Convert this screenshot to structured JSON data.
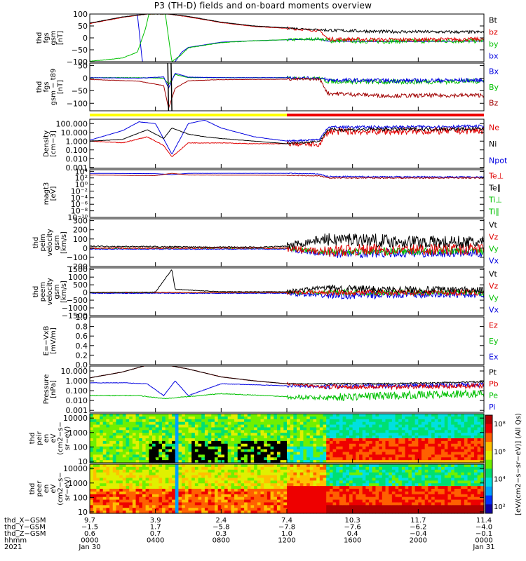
{
  "title": "P3 (TH-D) fields and on-board moments overview",
  "panels": [
    {
      "id": "fgs-gsm",
      "ylabel": [
        "thd",
        "fgs",
        "gsm",
        "[nT]"
      ],
      "ticks": [
        [
          "100",
          100
        ],
        [
          "50",
          50
        ],
        [
          "0",
          0
        ],
        [
          "−50",
          -50
        ],
        [
          "−100",
          -100
        ]
      ],
      "ylim": [
        -100,
        100
      ],
      "log": false,
      "legend": [
        {
          "t": "Bt",
          "c": "#000000"
        },
        {
          "t": "bz",
          "c": "#e00000"
        },
        {
          "t": "by",
          "c": "#00c000"
        },
        {
          "t": "bx",
          "c": "#0000e0"
        }
      ]
    },
    {
      "id": "fgs-gsm-t89",
      "ylabel": [
        "thd",
        "fgs",
        "gsm − t89",
        "[nT]"
      ],
      "ticks": [
        [
          "50",
          50
        ],
        [
          "0",
          0
        ],
        [
          "−50",
          -50
        ],
        [
          "−100",
          -100
        ]
      ],
      "ylim": [
        -130,
        60
      ],
      "log": false,
      "legend": [
        {
          "t": "Bx",
          "c": "#0000e0"
        },
        {
          "t": "By",
          "c": "#00c000"
        },
        {
          "t": "Bz",
          "c": "#a00000"
        }
      ]
    },
    {
      "id": "density",
      "ylabel": [
        "Density",
        "[cm−3]"
      ],
      "ticks": [
        [
          "100.000",
          2
        ],
        [
          "10.000",
          1
        ],
        [
          "1.000",
          0
        ],
        [
          "0.100",
          -1
        ],
        [
          "0.010",
          -2
        ],
        [
          "0.001",
          -3
        ]
      ],
      "ylim": [
        -3.1,
        2.5
      ],
      "log": true,
      "legend": [
        {
          "t": "Ne",
          "c": "#e00000"
        },
        {
          "t": "Ni",
          "c": "#000000"
        },
        {
          "t": "Npot",
          "c": "#0000e0"
        }
      ]
    },
    {
      "id": "temperature",
      "ylabel": [
        "magt3",
        "[eV]"
      ],
      "ticks": [
        [
          "10⁴",
          4
        ],
        [
          "10²",
          2
        ],
        [
          "10⁰",
          0
        ],
        [
          "10⁻²",
          -2
        ],
        [
          "10⁻⁴",
          -4
        ],
        [
          "10⁻⁶",
          -6
        ],
        [
          "10⁻⁸",
          -8
        ],
        [
          "10⁻¹⁰",
          -10
        ]
      ],
      "ylim": [
        -10,
        4.5
      ],
      "log": true,
      "legend": [
        {
          "t": "Te⊥",
          "c": "#e00000"
        },
        {
          "t": "Te∥",
          "c": "#000000"
        },
        {
          "t": "Ti⊥",
          "c": "#00c000"
        },
        {
          "t": "Ti∥",
          "c": "#00c000"
        }
      ]
    },
    {
      "id": "ion-velocity",
      "ylabel": [
        "thd",
        "peim",
        "velocity",
        "gsm",
        "[km/s]"
      ],
      "ticks": [
        [
          "300",
          300
        ],
        [
          "200",
          200
        ],
        [
          "100",
          100
        ],
        [
          "0",
          0
        ],
        [
          "−100",
          -100
        ],
        [
          "−200",
          -200
        ]
      ],
      "ylim": [
        -200,
        320
      ],
      "log": false,
      "legend": [
        {
          "t": "Vt",
          "c": "#000000"
        },
        {
          "t": "Vz",
          "c": "#e00000"
        },
        {
          "t": "Vy",
          "c": "#00c000"
        },
        {
          "t": "Vx",
          "c": "#0000e0"
        }
      ]
    },
    {
      "id": "electron-velocity",
      "ylabel": [
        "thd",
        "peem",
        "velocity",
        "gsm",
        "[km/s]"
      ],
      "ticks": [
        [
          "1500",
          1500
        ],
        [
          "1000",
          1000
        ],
        [
          "500",
          500
        ],
        [
          "0",
          0
        ],
        [
          "−500",
          -500
        ],
        [
          "−1000",
          -1000
        ],
        [
          "−1500",
          -1500
        ]
      ],
      "ylim": [
        -1500,
        1600
      ],
      "log": false,
      "legend": [
        {
          "t": "Vt",
          "c": "#000000"
        },
        {
          "t": "Vz",
          "c": "#e00000"
        },
        {
          "t": "Vy",
          "c": "#00c000"
        },
        {
          "t": "Vx",
          "c": "#0000e0"
        }
      ]
    },
    {
      "id": "efield",
      "ylabel": [
        "E=−VxB",
        "[mV/m]"
      ],
      "ticks": [
        [
          "1.0",
          1.0
        ],
        [
          "0.8",
          0.8
        ],
        [
          "0.6",
          0.6
        ],
        [
          "0.4",
          0.4
        ],
        [
          "0.2",
          0.2
        ],
        [
          "0.0",
          0.0
        ]
      ],
      "ylim": [
        0,
        1
      ],
      "log": false,
      "legend": [
        {
          "t": "Ez",
          "c": "#e00000"
        },
        {
          "t": "Ey",
          "c": "#00c000"
        },
        {
          "t": "Ex",
          "c": "#0000e0"
        }
      ]
    },
    {
      "id": "pressure",
      "ylabel": [
        "Pressure",
        "[nPa]"
      ],
      "ticks": [
        [
          "10.000",
          1
        ],
        [
          "1.000",
          0
        ],
        [
          "0.100",
          -1
        ],
        [
          "0.010",
          -2
        ],
        [
          "0.001",
          -3
        ]
      ],
      "ylim": [
        -3.2,
        1.5
      ],
      "log": true,
      "legend": [
        {
          "t": "Pt",
          "c": "#000000"
        },
        {
          "t": "Pb",
          "c": "#e00000"
        },
        {
          "t": "Pe",
          "c": "#00c000"
        },
        {
          "t": "Pi",
          "c": "#0000e0"
        }
      ]
    },
    {
      "id": "ion-eflux",
      "ylabel": [
        "thd",
        "peir",
        "en",
        "eV",
        "(cm2−s−",
        "sr−eV)"
      ],
      "ticks": [
        [
          "10000",
          4
        ],
        [
          "1000",
          3
        ],
        [
          "100",
          2
        ],
        [
          "10",
          1
        ]
      ],
      "ylim": [
        0.9,
        4.3
      ],
      "log": true,
      "legend": []
    },
    {
      "id": "electron-eflux",
      "ylabel": [
        "thd",
        "peer",
        "en",
        "eV",
        "(cm2−s−",
        "sr−eV)"
      ],
      "ticks": [
        [
          "10000",
          4
        ],
        [
          "1000",
          3
        ],
        [
          "100",
          2
        ],
        [
          "10",
          1
        ]
      ],
      "ylim": [
        0.9,
        4.3
      ],
      "log": true,
      "legend": []
    }
  ],
  "colorbar": {
    "ticks": [
      [
        "10⁸",
        8
      ],
      [
        "10⁶",
        6
      ],
      [
        "10⁴",
        4
      ],
      [
        "10²",
        2
      ]
    ],
    "label": "[eV/(cm2−s−sr−eV)] (All Qs)"
  },
  "orbit_labels": [
    "thd_X−GSM",
    "thd_Y−GSM",
    "thd_Z−GSM",
    "hhmm",
    "2021"
  ],
  "orbit_table": [
    {
      "t": 0,
      "v": [
        "9.7",
        "−1.5",
        "0.6",
        "0000",
        "Jan 30"
      ]
    },
    {
      "t": 4,
      "v": [
        "3.9",
        "1.7",
        "0.7",
        "0400",
        ""
      ]
    },
    {
      "t": 8,
      "v": [
        "2.4",
        "−5.8",
        "0.3",
        "0800",
        ""
      ]
    },
    {
      "t": 12,
      "v": [
        "7.4",
        "−7.8",
        "1.0",
        "1200",
        ""
      ]
    },
    {
      "t": 16,
      "v": [
        "10.3",
        "−7.6",
        "0.4",
        "1600",
        ""
      ]
    },
    {
      "t": 20,
      "v": [
        "11.7",
        "−6.2",
        "−0.4",
        "2000",
        ""
      ]
    },
    {
      "t": 24,
      "v": [
        "11.4",
        "−4.0",
        "−0.1",
        "0000",
        "Jan 31"
      ]
    }
  ],
  "mode_bar": [
    {
      "from": 0,
      "to": 12,
      "color": "#ffff00"
    },
    {
      "from": 12,
      "to": 24,
      "color": "#ee0000"
    }
  ],
  "chart_data": {
    "type": "line",
    "x_unit": "hours since 2021-01-30 00:00 UT",
    "xlim": [
      0,
      24
    ],
    "series": {
      "fgs_Bt": [
        [
          0,
          62
        ],
        [
          2,
          88
        ],
        [
          3.5,
          100
        ],
        [
          4.8,
          100
        ],
        [
          6,
          90
        ],
        [
          8,
          66
        ],
        [
          10,
          50
        ],
        [
          12,
          42
        ],
        [
          14,
          34
        ],
        [
          14.5,
          32
        ],
        [
          18,
          26
        ],
        [
          24,
          24
        ]
      ],
      "fgs_bz": [
        [
          0,
          60
        ],
        [
          2,
          86
        ],
        [
          3.5,
          100
        ],
        [
          4.8,
          100
        ],
        [
          6,
          88
        ],
        [
          8,
          64
        ],
        [
          10,
          48
        ],
        [
          12,
          40
        ],
        [
          14,
          30
        ],
        [
          14.5,
          -5
        ],
        [
          18,
          -8
        ],
        [
          24,
          -6
        ]
      ],
      "fgs_by": [
        [
          0,
          -98
        ],
        [
          1,
          -92
        ],
        [
          2,
          -84
        ],
        [
          2.9,
          -60
        ],
        [
          3.4,
          40
        ],
        [
          3.6,
          100
        ],
        [
          4.6,
          100
        ],
        [
          5,
          -100
        ],
        [
          5.5,
          -75
        ],
        [
          6,
          -42
        ],
        [
          8,
          -20
        ],
        [
          10,
          -12
        ],
        [
          12,
          -8
        ],
        [
          14,
          -4
        ],
        [
          14.5,
          -12
        ],
        [
          18,
          -14
        ],
        [
          24,
          -12
        ]
      ],
      "fgs_bx": [
        [
          2.9,
          100
        ],
        [
          3.2,
          -100
        ],
        [
          5.2,
          -100
        ],
        [
          5.6,
          -60
        ],
        [
          6,
          -40
        ],
        [
          8,
          -18
        ],
        [
          10,
          -12
        ],
        [
          12,
          -8
        ],
        [
          14,
          -6
        ],
        [
          14.5,
          -14
        ],
        [
          18,
          -16
        ],
        [
          24,
          -14
        ]
      ],
      "dB_Bx": [
        [
          0,
          2
        ],
        [
          3,
          0
        ],
        [
          4.5,
          5
        ],
        [
          4.8,
          -40
        ],
        [
          5.2,
          20
        ],
        [
          6,
          4
        ],
        [
          8,
          2
        ],
        [
          12,
          2
        ],
        [
          14,
          0
        ],
        [
          14.5,
          -8
        ],
        [
          18,
          -10
        ],
        [
          24,
          -8
        ]
      ],
      "dB_By": [
        [
          0,
          2
        ],
        [
          3,
          2
        ],
        [
          4.5,
          0
        ],
        [
          4.8,
          -25
        ],
        [
          5.2,
          15
        ],
        [
          6,
          2
        ],
        [
          8,
          2
        ],
        [
          12,
          2
        ],
        [
          14,
          0
        ],
        [
          14.5,
          -12
        ],
        [
          18,
          -15
        ],
        [
          24,
          -12
        ]
      ],
      "dB_Bz": [
        [
          0,
          -5
        ],
        [
          3,
          -12
        ],
        [
          4.5,
          -30
        ],
        [
          4.8,
          -120
        ],
        [
          5.2,
          -40
        ],
        [
          6,
          -10
        ],
        [
          8,
          -6
        ],
        [
          12,
          -4
        ],
        [
          14,
          -4
        ],
        [
          14.5,
          -60
        ],
        [
          18,
          -70
        ],
        [
          24,
          -68
        ]
      ],
      "density_Ni": [
        [
          0,
          0
        ],
        [
          2,
          0.2
        ],
        [
          3.5,
          1.3
        ],
        [
          4.5,
          0.3
        ],
        [
          5,
          1.5
        ],
        [
          6,
          0.8
        ],
        [
          7,
          0.5
        ],
        [
          8,
          0.3
        ],
        [
          10,
          0
        ],
        [
          12,
          -0.3
        ],
        [
          14,
          0
        ],
        [
          14.5,
          1.3
        ],
        [
          18,
          1.35
        ],
        [
          24,
          1.4
        ]
      ],
      "density_Ne": [
        [
          0,
          0
        ],
        [
          2,
          -0.2
        ],
        [
          3.5,
          0.5
        ],
        [
          4.5,
          -0.5
        ],
        [
          5,
          -1.8
        ],
        [
          6,
          -0.2
        ],
        [
          8,
          -0.2
        ],
        [
          10,
          -0.3
        ],
        [
          12,
          -0.3
        ],
        [
          14,
          -0.4
        ],
        [
          14.5,
          1.1
        ],
        [
          18,
          1.1
        ],
        [
          24,
          1.2
        ]
      ],
      "density_Npot": [
        [
          0,
          0.1
        ],
        [
          2,
          1.2
        ],
        [
          3,
          2.2
        ],
        [
          4,
          2.0
        ],
        [
          5,
          -1.5
        ],
        [
          6,
          2.0
        ],
        [
          7,
          2.4
        ],
        [
          8,
          1.5
        ],
        [
          10,
          0.5
        ],
        [
          12,
          0
        ],
        [
          14,
          0.2
        ],
        [
          14.5,
          1.6
        ],
        [
          18,
          1.6
        ],
        [
          24,
          1.7
        ]
      ],
      "temp_Te": [
        [
          0,
          2.9
        ],
        [
          4,
          2.7
        ],
        [
          5,
          3.4
        ],
        [
          6,
          2.9
        ],
        [
          12,
          2.8
        ],
        [
          14,
          2.6
        ],
        [
          14.5,
          2.0
        ],
        [
          24,
          2.0
        ]
      ],
      "temp_Ti": [
        [
          0,
          3.4
        ],
        [
          4,
          3.3
        ],
        [
          5,
          3.0
        ],
        [
          6,
          3.4
        ],
        [
          12,
          3.4
        ],
        [
          14,
          3.2
        ],
        [
          14.5,
          2.4
        ],
        [
          24,
          2.3
        ]
      ],
      "vi_Vt": [
        [
          0,
          20
        ],
        [
          10,
          10
        ],
        [
          12,
          20
        ],
        [
          13,
          60
        ],
        [
          14,
          90
        ],
        [
          16,
          100
        ],
        [
          18,
          80
        ],
        [
          20,
          70
        ],
        [
          24,
          60
        ]
      ],
      "vi_Vz": [
        [
          0,
          0
        ],
        [
          12,
          0
        ],
        [
          13,
          -20
        ],
        [
          14,
          -40
        ],
        [
          16,
          -20
        ],
        [
          24,
          -10
        ]
      ],
      "ve_Vt": [
        [
          0,
          0
        ],
        [
          4,
          20
        ],
        [
          5,
          1500
        ],
        [
          5.2,
          200
        ],
        [
          8,
          50
        ],
        [
          12,
          50
        ],
        [
          14,
          300
        ],
        [
          18,
          200
        ],
        [
          24,
          150
        ]
      ],
      "pressure_Pt": [
        [
          0,
          0.3
        ],
        [
          2,
          0.9
        ],
        [
          3.5,
          1.6
        ],
        [
          4.7,
          1.6
        ],
        [
          6,
          1.2
        ],
        [
          8,
          0.4
        ],
        [
          10,
          0
        ],
        [
          12,
          -0.3
        ],
        [
          14,
          -0.3
        ],
        [
          18,
          -0.3
        ],
        [
          24,
          -0.1
        ]
      ],
      "pressure_Pi": [
        [
          0,
          -0.2
        ],
        [
          2,
          -0.2
        ],
        [
          3.5,
          -0.3
        ],
        [
          4.5,
          -1.5
        ],
        [
          5.2,
          0
        ],
        [
          6,
          -1.5
        ],
        [
          8,
          -0.3
        ],
        [
          10,
          -0.4
        ],
        [
          12,
          -0.5
        ],
        [
          14,
          -0.6
        ],
        [
          18,
          -0.5
        ],
        [
          24,
          -0.4
        ]
      ],
      "pressure_Pe": [
        [
          0,
          -1.5
        ],
        [
          3,
          -1.5
        ],
        [
          4.5,
          -1.8
        ],
        [
          6,
          -1.6
        ],
        [
          8,
          -1.3
        ],
        [
          12,
          -1.6
        ],
        [
          14,
          -1.7
        ],
        [
          18,
          -1.5
        ],
        [
          24,
          -1.3
        ]
      ]
    }
  }
}
